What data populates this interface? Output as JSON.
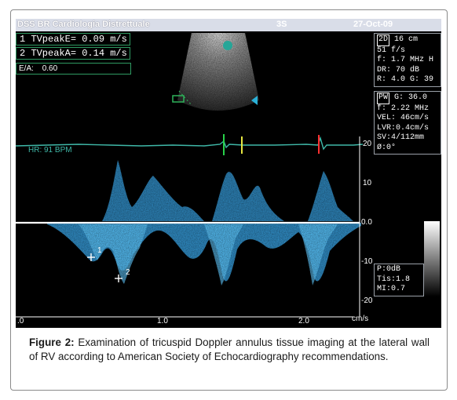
{
  "header": {
    "title": "DSS BR Cardiologia Distrettuale",
    "code": "3S",
    "date": "27-Oct-09"
  },
  "measurements": [
    {
      "index": "1",
      "label": "TVpeakE=",
      "value": "0.09 m/s"
    },
    {
      "index": "2",
      "label": "TVpeakA=",
      "value": "0.14 m/s"
    }
  ],
  "ratio": {
    "label": "E/A:",
    "value": "0.60"
  },
  "panel_2d": {
    "mode": "2D",
    "lines": [
      "16 cm",
      "51 f/s",
      "f: 1.7 MHz H",
      "DR: 70 dB",
      "R: 4.0   G: 39"
    ]
  },
  "panel_pw": {
    "mode": "PW",
    "lines": [
      "G: 36.0",
      "f: 2.22 MHz",
      "VEL: 46cm/s",
      "LVR:0.4cm/s",
      "SV:4/112mm",
      "Ø:0°"
    ]
  },
  "panel_power": {
    "lines": [
      "P:0dB",
      "Tis:1.8",
      "MI:0.7"
    ]
  },
  "heart_rate": "HR: 91 BPM",
  "velocity_axis": {
    "ticks": [
      "20",
      "10",
      "0.0",
      "-10",
      "-20"
    ],
    "unit": "cm/s"
  },
  "time_axis": {
    "ticks": [
      ".0",
      "1.0",
      "2.0"
    ]
  },
  "markers": [
    "1",
    "2"
  ],
  "caption": {
    "label": "Figure 2:",
    "text": "Examination of tricuspid Doppler annulus tissue imaging at the lateral wall of RV according to American Society of Echocardiography recommendations."
  },
  "colors": {
    "doppler": "#3aa6e8",
    "ecg": "#3fb8a8",
    "baseline": "#ffffff",
    "box_border": "#2f9a62"
  }
}
